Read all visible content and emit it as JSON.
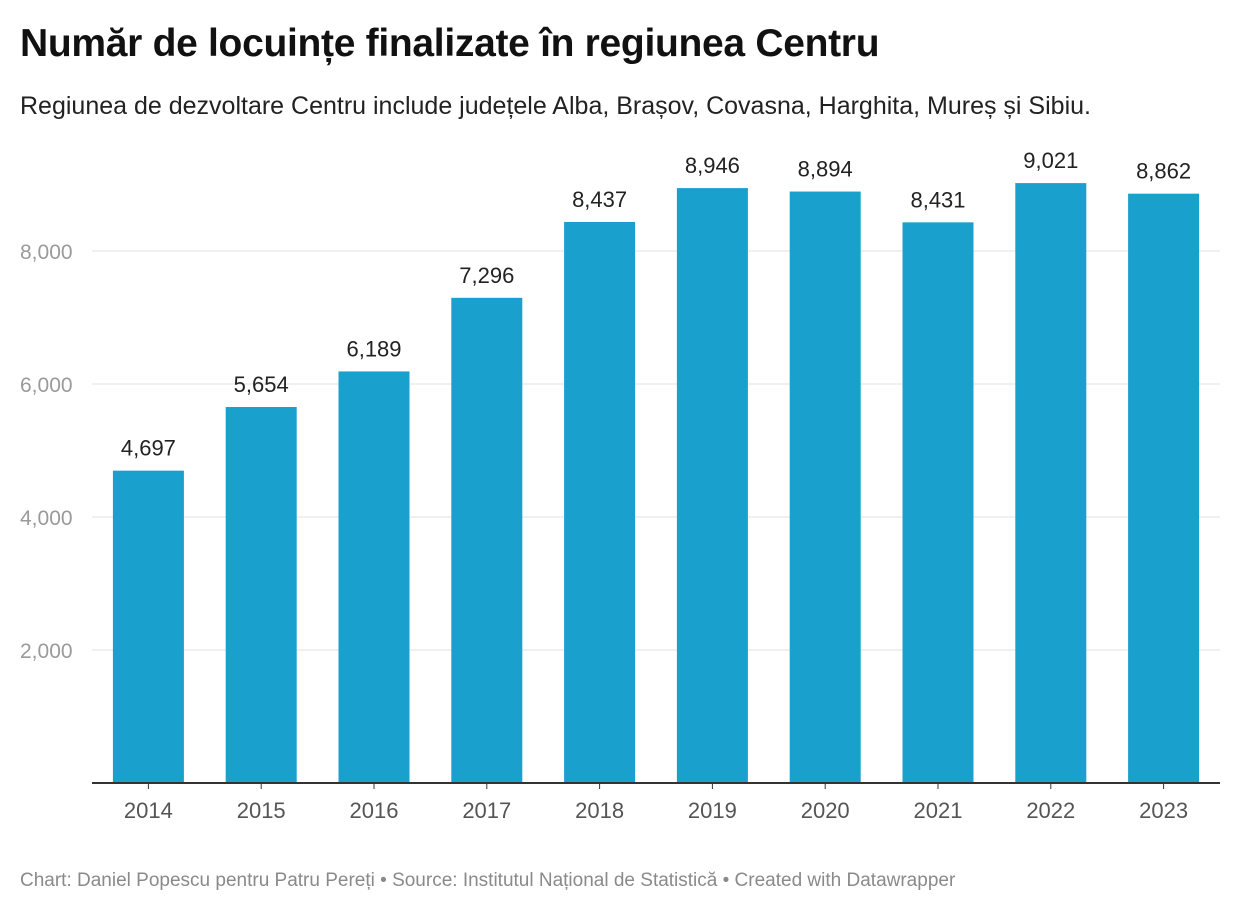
{
  "title": "Număr de locuințe finalizate în regiunea Centru",
  "subtitle": "Regiunea de dezvoltare Centru include județele Alba, Brașov, Covasna, Harghita, Mureș și Sibiu.",
  "footer": "Chart: Daniel Popescu pentru Patru Pereți • Source: Institutul Național de Statistică • Created with Datawrapper",
  "chart_data": {
    "type": "bar",
    "title": "Număr de locuințe finalizate în regiunea Centru",
    "xlabel": "",
    "ylabel": "",
    "categories": [
      "2014",
      "2015",
      "2016",
      "2017",
      "2018",
      "2019",
      "2020",
      "2021",
      "2022",
      "2023"
    ],
    "values": [
      4697,
      5654,
      6189,
      7296,
      8437,
      8946,
      8894,
      8431,
      9021,
      8862
    ],
    "value_labels": [
      "4,697",
      "5,654",
      "6,189",
      "7,296",
      "8,437",
      "8,946",
      "8,894",
      "8,431",
      "9,021",
      "8,862"
    ],
    "yticks": [
      2000,
      4000,
      6000,
      8000
    ],
    "ytick_labels": [
      "2,000",
      "4,000",
      "6,000",
      "8,000"
    ],
    "ylim": [
      0,
      9400
    ],
    "grid": true,
    "legend": "none",
    "bar_color": "#1aa0cd",
    "grid_color": "#e2e2e2",
    "axis_color": "#333333"
  }
}
